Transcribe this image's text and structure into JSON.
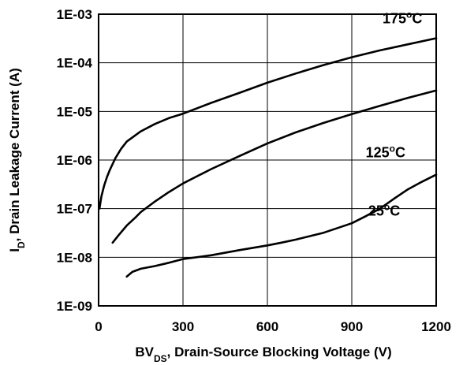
{
  "chart_data": {
    "type": "line",
    "xscale": "linear",
    "yscale": "log",
    "xlim": [
      0,
      1200
    ],
    "ylim": [
      1e-09,
      0.001
    ],
    "grid": true,
    "xlabel": {
      "prefix": "BV",
      "sub": "DS",
      "suffix": ", Drain-Source Blocking Voltage (V)"
    },
    "ylabel": {
      "prefix": "I",
      "sub": "D",
      "suffix": ", Drain Leakage Current (A)"
    },
    "xticks": [
      {
        "value": 0,
        "label": "0"
      },
      {
        "value": 300,
        "label": "300"
      },
      {
        "value": 600,
        "label": "600"
      },
      {
        "value": 900,
        "label": "900"
      },
      {
        "value": 1200,
        "label": "1200"
      }
    ],
    "yticks": [
      {
        "value": 1e-09,
        "label": "1E-09"
      },
      {
        "value": 1e-08,
        "label": "1E-08"
      },
      {
        "value": 1e-07,
        "label": "1E-07"
      },
      {
        "value": 1e-06,
        "label": "1E-06"
      },
      {
        "value": 1e-05,
        "label": "1E-05"
      },
      {
        "value": 0.0001,
        "label": "1E-04"
      },
      {
        "value": 0.001,
        "label": "1E-03"
      }
    ],
    "series": [
      {
        "name": "175°C",
        "temp": "175",
        "unit": "C",
        "deg": "o",
        "x": [
          3,
          10,
          20,
          30,
          40,
          50,
          60,
          80,
          100,
          150,
          200,
          250,
          300,
          400,
          500,
          600,
          700,
          800,
          900,
          1000,
          1100,
          1200
        ],
        "y": [
          1e-07,
          1.8e-07,
          3e-07,
          4.5e-07,
          6.3e-07,
          8.3e-07,
          1.1e-06,
          1.7e-06,
          2.4e-06,
          3.9e-06,
          5.5e-06,
          7.3e-06,
          9e-06,
          1.5e-05,
          2.4e-05,
          3.9e-05,
          6e-05,
          9e-05,
          0.00013,
          0.00018,
          0.00024,
          0.00032
        ]
      },
      {
        "name": "125°C",
        "temp": "125",
        "unit": "C",
        "deg": "o",
        "x": [
          50,
          70,
          100,
          130,
          150,
          200,
          250,
          300,
          400,
          500,
          600,
          700,
          800,
          900,
          1000,
          1100,
          1200
        ],
        "y": [
          2e-08,
          2.8e-08,
          4.5e-08,
          6.5e-08,
          8.5e-08,
          1.4e-07,
          2.2e-07,
          3.3e-07,
          6.5e-07,
          1.2e-06,
          2.2e-06,
          3.7e-06,
          5.8e-06,
          8.8e-06,
          1.3e-05,
          1.9e-05,
          2.7e-05
        ]
      },
      {
        "name": "25°C",
        "temp": "25",
        "unit": "C",
        "deg": "o",
        "x": [
          100,
          120,
          150,
          200,
          250,
          300,
          400,
          500,
          600,
          650,
          700,
          800,
          850,
          900,
          950,
          1000,
          1050,
          1100,
          1150,
          1200
        ],
        "y": [
          4e-09,
          5e-09,
          5.8e-09,
          6.6e-09,
          7.7e-09,
          9.2e-09,
          1.1e-08,
          1.4e-08,
          1.75e-08,
          2e-08,
          2.3e-08,
          3.2e-08,
          4e-08,
          5e-08,
          7e-08,
          1e-07,
          1.6e-07,
          2.5e-07,
          3.6e-07,
          5e-07
        ]
      }
    ]
  }
}
